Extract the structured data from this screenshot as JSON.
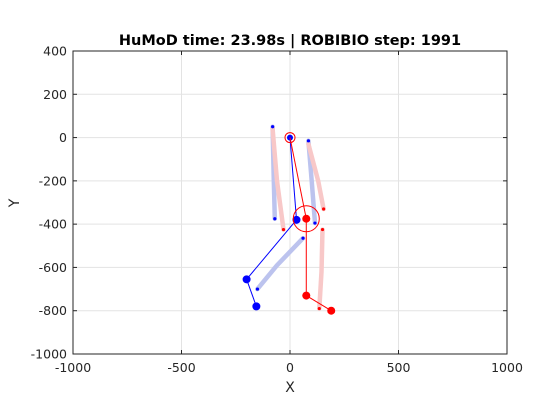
{
  "chart_data": {
    "type": "scatter",
    "title": "HuMoD time: 23.98s | ROBIBIO step: 1991",
    "xlabel": "X",
    "ylabel": "Y",
    "xlim": [
      -1000,
      1000
    ],
    "ylim": [
      -1000,
      400
    ],
    "xticks": [
      -1000,
      -500,
      0,
      500,
      1000
    ],
    "xtick_labels": [
      "-1000",
      "-500",
      "0",
      "500",
      "1000"
    ],
    "yticks": [
      -1000,
      -800,
      -600,
      -400,
      -200,
      0,
      200,
      400
    ],
    "ytick_labels": [
      "-1000",
      "-800",
      "-600",
      "-400",
      "-200",
      "0",
      "200",
      "400"
    ],
    "grid": true,
    "colors": {
      "blue": "#0000ff",
      "red": "#ff0000",
      "blue_trace": "#bcc3ee",
      "red_trace": "#f8c8c8"
    },
    "traces": [
      {
        "color": "blue_trace",
        "points": [
          [
            -80,
            50
          ],
          [
            -75,
            -180
          ],
          [
            -70,
            -375
          ]
        ]
      },
      {
        "color": "red_trace",
        "points": [
          [
            -80,
            40
          ],
          [
            -60,
            -200
          ],
          [
            -30,
            -425
          ]
        ]
      },
      {
        "color": "blue_trace",
        "points": [
          [
            85,
            -15
          ],
          [
            100,
            -200
          ],
          [
            115,
            -395
          ]
        ]
      },
      {
        "color": "red_trace",
        "points": [
          [
            85,
            -30
          ],
          [
            130,
            -200
          ],
          [
            155,
            -330
          ]
        ]
      },
      {
        "color": "blue_trace",
        "points": [
          [
            60,
            -465
          ],
          [
            -60,
            -590
          ],
          [
            -150,
            -700
          ]
        ]
      },
      {
        "color": "red_trace",
        "points": [
          [
            150,
            -425
          ],
          [
            145,
            -620
          ],
          [
            135,
            -790
          ]
        ]
      }
    ],
    "skeletons": [
      {
        "color": "blue",
        "segments": [
          [
            [
              0,
              0
            ],
            [
              30,
              -380
            ]
          ],
          [
            [
              30,
              -380
            ],
            [
              -200,
              -655
            ]
          ],
          [
            [
              -200,
              -655
            ],
            [
              -155,
              -780
            ]
          ]
        ],
        "joints": [
          {
            "x": 30,
            "y": -380,
            "size": "medium"
          },
          {
            "x": -200,
            "y": -655,
            "size": "medium"
          },
          {
            "x": -155,
            "y": -780,
            "size": "medium"
          },
          {
            "x": 0,
            "y": 0,
            "size": "small"
          },
          {
            "x": -80,
            "y": 50,
            "size": "tiny"
          },
          {
            "x": -70,
            "y": -375,
            "size": "tiny"
          },
          {
            "x": 85,
            "y": -15,
            "size": "tiny"
          },
          {
            "x": 115,
            "y": -395,
            "size": "tiny"
          },
          {
            "x": 60,
            "y": -465,
            "size": "tiny"
          },
          {
            "x": -150,
            "y": -700,
            "size": "tiny"
          }
        ]
      },
      {
        "color": "red",
        "segments": [
          [
            [
              0,
              0
            ],
            [
              75,
              -375
            ]
          ],
          [
            [
              75,
              -375
            ],
            [
              75,
              -730
            ]
          ],
          [
            [
              75,
              -730
            ],
            [
              190,
              -800
            ]
          ]
        ],
        "joints": [
          {
            "x": 75,
            "y": -375,
            "size": "medium"
          },
          {
            "x": 75,
            "y": -730,
            "size": "medium"
          },
          {
            "x": 190,
            "y": -800,
            "size": "medium"
          },
          {
            "x": -30,
            "y": -425,
            "size": "tiny"
          },
          {
            "x": 155,
            "y": -330,
            "size": "tiny"
          },
          {
            "x": 150,
            "y": -425,
            "size": "tiny"
          },
          {
            "x": 135,
            "y": -790,
            "size": "tiny"
          }
        ]
      }
    ],
    "rings": [
      {
        "x": 0,
        "y": 0,
        "color": "red",
        "size": "small"
      },
      {
        "x": 75,
        "y": -375,
        "color": "red",
        "size": "large"
      }
    ]
  }
}
